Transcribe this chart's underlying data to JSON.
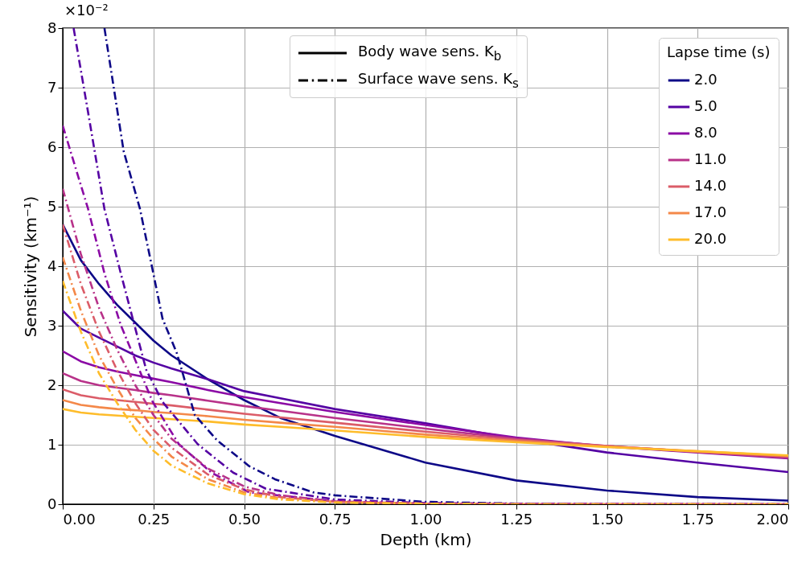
{
  "chart_data": {
    "type": "line",
    "xlabel": "Depth (km)",
    "ylabel": "Sensitivity (km⁻¹)",
    "legend_title": "Lapse time (s)",
    "legend": "top right",
    "grid": true,
    "annotations": [
      "×10⁻²",
      "Body wave sens. K$_{b}$",
      "Surface wave sens. K$_{s}$"
    ],
    "xlim": [
      0,
      2
    ],
    "xticks": [
      {
        "value": 0,
        "label": "0.00"
      },
      {
        "value": 0.25,
        "label": "0.25"
      },
      {
        "value": 0.5,
        "label": "0.50"
      },
      {
        "value": 0.75,
        "label": "0.75"
      },
      {
        "value": 1,
        "label": "1.00"
      },
      {
        "value": 1.25,
        "label": "1.25"
      },
      {
        "value": 1.5,
        "label": "1.50"
      },
      {
        "value": 1.75,
        "label": "1.75"
      },
      {
        "value": 2,
        "label": "2.00"
      }
    ],
    "ylim": [
      0,
      8
    ],
    "yticks": [
      0,
      1,
      2,
      3,
      4,
      5,
      6,
      7,
      8
    ],
    "x": [
      0,
      0.05,
      0.1,
      0.15,
      0.2,
      0.25,
      0.3,
      0.4,
      0.5,
      0.6,
      0.75,
      1,
      1.25,
      1.5,
      1.75,
      2
    ],
    "series": [
      {
        "name": "2.0",
        "color": "#0d0887",
        "line_style": "solid",
        "values": [
          4.7,
          4.1,
          3.7,
          3.35,
          3.05,
          2.75,
          2.5,
          2.1,
          1.75,
          1.45,
          1.15,
          0.7,
          0.4,
          0.23,
          0.12,
          0.06
        ]
      },
      {
        "name": "5.0",
        "color": "#5402a3",
        "line_style": "solid",
        "values": [
          3.25,
          2.95,
          2.8,
          2.65,
          2.5,
          2.38,
          2.28,
          2.1,
          1.9,
          1.78,
          1.6,
          1.36,
          1.1,
          0.87,
          0.7,
          0.54
        ]
      },
      {
        "name": "8.0",
        "color": "#8b0aa5",
        "line_style": "solid",
        "values": [
          2.57,
          2.4,
          2.3,
          2.23,
          2.17,
          2.11,
          2.05,
          1.92,
          1.8,
          1.7,
          1.55,
          1.33,
          1.12,
          0.97,
          0.87,
          0.77
        ]
      },
      {
        "name": "11.0",
        "color": "#b83289",
        "line_style": "solid",
        "values": [
          2.2,
          2.07,
          2.0,
          1.96,
          1.92,
          1.87,
          1.83,
          1.74,
          1.65,
          1.57,
          1.45,
          1.27,
          1.1,
          0.98,
          0.88,
          0.78
        ]
      },
      {
        "name": "14.0",
        "color": "#db5c68",
        "line_style": "solid",
        "values": [
          1.93,
          1.83,
          1.78,
          1.75,
          1.72,
          1.69,
          1.66,
          1.59,
          1.52,
          1.46,
          1.37,
          1.22,
          1.08,
          0.98,
          0.88,
          0.8
        ]
      },
      {
        "name": "17.0",
        "color": "#f48849",
        "line_style": "solid",
        "values": [
          1.75,
          1.67,
          1.63,
          1.6,
          1.58,
          1.55,
          1.53,
          1.48,
          1.42,
          1.37,
          1.3,
          1.17,
          1.06,
          0.97,
          0.89,
          0.81
        ]
      },
      {
        "name": "20.0",
        "color": "#febc2a",
        "line_style": "solid",
        "values": [
          1.6,
          1.54,
          1.51,
          1.49,
          1.47,
          1.45,
          1.43,
          1.39,
          1.34,
          1.3,
          1.24,
          1.13,
          1.04,
          0.96,
          0.89,
          0.82
        ]
      },
      {
        "color": "#0d0887",
        "line_style": "dashdot",
        "x": [
          0.115,
          0.168,
          0.213,
          0.248,
          0.275,
          0.315,
          0.364,
          0.426,
          0.514,
          0.585,
          0.69,
          0.75,
          1,
          1.25,
          1.5,
          2
        ],
        "values": [
          8,
          5.93,
          4.96,
          3.93,
          3.12,
          2.53,
          1.5,
          1.07,
          0.64,
          0.42,
          0.2,
          0.15,
          0.04,
          0.01,
          0,
          0
        ]
      },
      {
        "color": "#5402a3",
        "line_style": "dashdot",
        "x": [
          0.03,
          0.07,
          0.115,
          0.16,
          0.195,
          0.23,
          0.275,
          0.372,
          0.47,
          0.56,
          0.75,
          1,
          1.5,
          2
        ],
        "values": [
          8,
          6.58,
          4.96,
          3.88,
          3.07,
          2.26,
          1.72,
          1.01,
          0.53,
          0.26,
          0.08,
          0.02,
          0,
          0
        ]
      },
      {
        "color": "#8b0aa5",
        "line_style": "dashdot",
        "x": [
          0,
          0.07,
          0.115,
          0.16,
          0.204,
          0.248,
          0.32,
          0.41,
          0.514,
          0.75,
          1,
          2
        ],
        "values": [
          6.36,
          4.96,
          3.88,
          3.01,
          2.36,
          1.72,
          1.01,
          0.53,
          0.2,
          0.05,
          0.01,
          0
        ]
      },
      {
        "color": "#b83289",
        "line_style": "dashdot",
        "values": [
          5.3,
          4.2,
          3.3,
          2.6,
          2.0,
          1.5,
          1.1,
          0.6,
          0.3,
          0.15,
          0.05,
          0.01,
          0,
          0,
          0,
          0
        ]
      },
      {
        "color": "#db5c68",
        "line_style": "dashdot",
        "values": [
          4.7,
          3.7,
          2.9,
          2.25,
          1.7,
          1.25,
          0.95,
          0.5,
          0.25,
          0.12,
          0.04,
          0.01,
          0,
          0,
          0,
          0
        ]
      },
      {
        "color": "#f48849",
        "line_style": "dashdot",
        "values": [
          4.15,
          3.25,
          2.5,
          1.95,
          1.45,
          1.1,
          0.8,
          0.42,
          0.2,
          0.1,
          0.03,
          0.01,
          0,
          0,
          0,
          0
        ]
      },
      {
        "color": "#febc2a",
        "line_style": "dashdot",
        "values": [
          3.75,
          2.9,
          2.2,
          1.7,
          1.25,
          0.9,
          0.65,
          0.35,
          0.17,
          0.08,
          0.03,
          0.01,
          0,
          0,
          0,
          0
        ]
      }
    ]
  }
}
